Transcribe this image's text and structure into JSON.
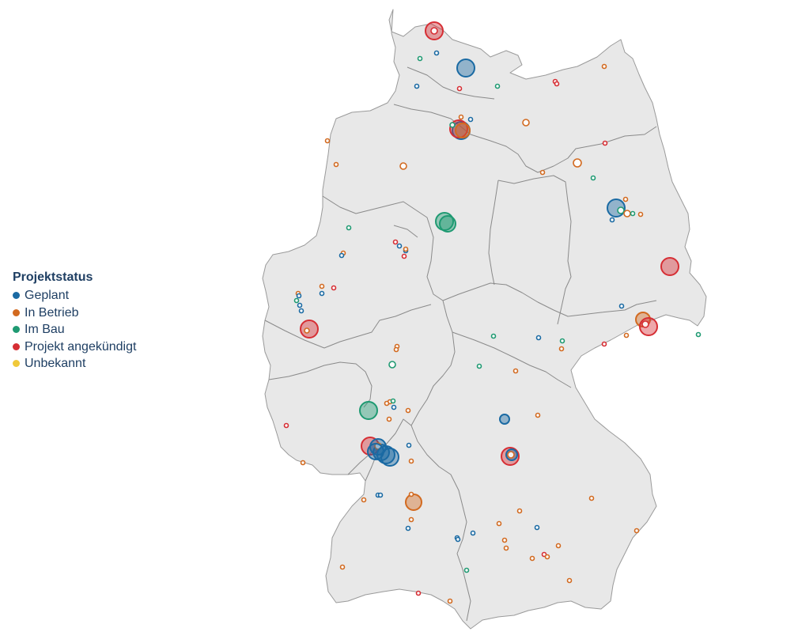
{
  "legend": {
    "title": "Projektstatus",
    "items": [
      {
        "label": "Geplant",
        "status": "geplant",
        "color": "#1a6aa3"
      },
      {
        "label": "In Betrieb",
        "status": "in_betrieb",
        "color": "#d26a20"
      },
      {
        "label": "Im Bau",
        "status": "im_bau",
        "color": "#1f9a72"
      },
      {
        "label": "Projekt angekündigt",
        "status": "angekuendigt",
        "color": "#d62e34"
      },
      {
        "label": "Unbekannt",
        "status": "unbekannt",
        "color": "#f0c93a"
      }
    ]
  },
  "map": {
    "region": "Deutschland",
    "fill_color": "#e8e8e8",
    "border_color": "#8a8a8a"
  }
}
